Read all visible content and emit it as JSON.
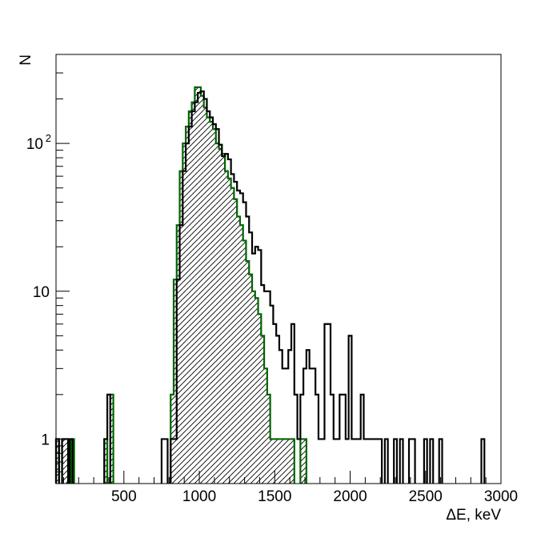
{
  "chart_data": {
    "type": "histogram",
    "xlabel": "ΔE, keV",
    "ylabel": "N",
    "xlim": [
      50,
      3000
    ],
    "ylim": [
      0.5,
      400
    ],
    "y_scale": "log",
    "bin_width": 20,
    "x_ticks": [
      500,
      1000,
      1500,
      2000,
      2500,
      3000
    ],
    "y_ticks": [
      {
        "value": 1,
        "label": "1"
      },
      {
        "value": 10,
        "label": "10"
      },
      {
        "value": 100,
        "label": "10",
        "exponent": "2"
      }
    ],
    "grid": false,
    "legend": "none",
    "series": [
      {
        "color": "#000000",
        "style": "outline",
        "bins": [
          [
            50,
            1
          ],
          [
            90,
            1
          ],
          [
            110,
            1
          ],
          [
            140,
            1
          ],
          [
            370,
            1
          ],
          [
            390,
            2
          ],
          [
            750,
            1
          ],
          [
            770,
            1
          ],
          [
            810,
            1
          ],
          [
            830,
            1
          ],
          [
            850,
            12
          ],
          [
            870,
            28
          ],
          [
            890,
            65
          ],
          [
            910,
            100
          ],
          [
            930,
            130
          ],
          [
            950,
            165
          ],
          [
            970,
            190
          ],
          [
            990,
            220
          ],
          [
            1010,
            225
          ],
          [
            1030,
            200
          ],
          [
            1050,
            165
          ],
          [
            1070,
            150
          ],
          [
            1090,
            135
          ],
          [
            1110,
            125
          ],
          [
            1130,
            98
          ],
          [
            1150,
            82
          ],
          [
            1170,
            85
          ],
          [
            1190,
            78
          ],
          [
            1210,
            62
          ],
          [
            1230,
            55
          ],
          [
            1250,
            48
          ],
          [
            1270,
            46
          ],
          [
            1290,
            40
          ],
          [
            1310,
            32
          ],
          [
            1330,
            25
          ],
          [
            1350,
            18
          ],
          [
            1370,
            20
          ],
          [
            1390,
            19
          ],
          [
            1410,
            11
          ],
          [
            1430,
            10
          ],
          [
            1450,
            10
          ],
          [
            1470,
            8
          ],
          [
            1490,
            6
          ],
          [
            1510,
            5
          ],
          [
            1530,
            4
          ],
          [
            1550,
            3
          ],
          [
            1570,
            3
          ],
          [
            1590,
            4
          ],
          [
            1610,
            6
          ],
          [
            1630,
            2
          ],
          [
            1650,
            1
          ],
          [
            1670,
            2
          ],
          [
            1690,
            3
          ],
          [
            1710,
            4
          ],
          [
            1730,
            3
          ],
          [
            1750,
            3
          ],
          [
            1770,
            2
          ],
          [
            1790,
            1
          ],
          [
            1810,
            1
          ],
          [
            1830,
            6
          ],
          [
            1850,
            6
          ],
          [
            1870,
            2
          ],
          [
            1890,
            1
          ],
          [
            1910,
            1
          ],
          [
            1930,
            2
          ],
          [
            1950,
            2
          ],
          [
            1970,
            1
          ],
          [
            1990,
            5
          ],
          [
            2010,
            1
          ],
          [
            2030,
            1
          ],
          [
            2050,
            1
          ],
          [
            2070,
            2
          ],
          [
            2090,
            1
          ],
          [
            2110,
            1
          ],
          [
            2130,
            1
          ],
          [
            2150,
            1
          ],
          [
            2170,
            1
          ],
          [
            2190,
            1
          ],
          [
            2230,
            1
          ],
          [
            2290,
            1
          ],
          [
            2330,
            1
          ],
          [
            2390,
            1
          ],
          [
            2410,
            1
          ],
          [
            2490,
            1
          ],
          [
            2530,
            1
          ],
          [
            2590,
            1
          ],
          [
            2870,
            1
          ]
        ]
      },
      {
        "color": "#006400",
        "style": "hatched",
        "bins": [
          [
            50,
            1
          ],
          [
            90,
            1
          ],
          [
            110,
            1
          ],
          [
            150,
            1
          ],
          [
            370,
            1
          ],
          [
            410,
            2
          ],
          [
            810,
            2
          ],
          [
            830,
            12
          ],
          [
            850,
            28
          ],
          [
            870,
            65
          ],
          [
            890,
            100
          ],
          [
            910,
            130
          ],
          [
            930,
            165
          ],
          [
            950,
            190
          ],
          [
            970,
            240
          ],
          [
            990,
            240
          ],
          [
            1010,
            210
          ],
          [
            1030,
            175
          ],
          [
            1050,
            150
          ],
          [
            1070,
            140
          ],
          [
            1090,
            125
          ],
          [
            1110,
            100
          ],
          [
            1130,
            92
          ],
          [
            1150,
            85
          ],
          [
            1170,
            65
          ],
          [
            1190,
            58
          ],
          [
            1210,
            50
          ],
          [
            1230,
            42
          ],
          [
            1250,
            32
          ],
          [
            1270,
            28
          ],
          [
            1290,
            22
          ],
          [
            1310,
            16
          ],
          [
            1330,
            13
          ],
          [
            1350,
            10
          ],
          [
            1370,
            9
          ],
          [
            1390,
            7
          ],
          [
            1410,
            5
          ],
          [
            1430,
            3
          ],
          [
            1450,
            2
          ],
          [
            1470,
            1
          ],
          [
            1490,
            1
          ],
          [
            1510,
            1
          ],
          [
            1530,
            1
          ],
          [
            1550,
            1
          ],
          [
            1570,
            1
          ],
          [
            1590,
            1
          ],
          [
            1610,
            1
          ],
          [
            1670,
            1
          ],
          [
            1690,
            1
          ]
        ]
      }
    ]
  }
}
